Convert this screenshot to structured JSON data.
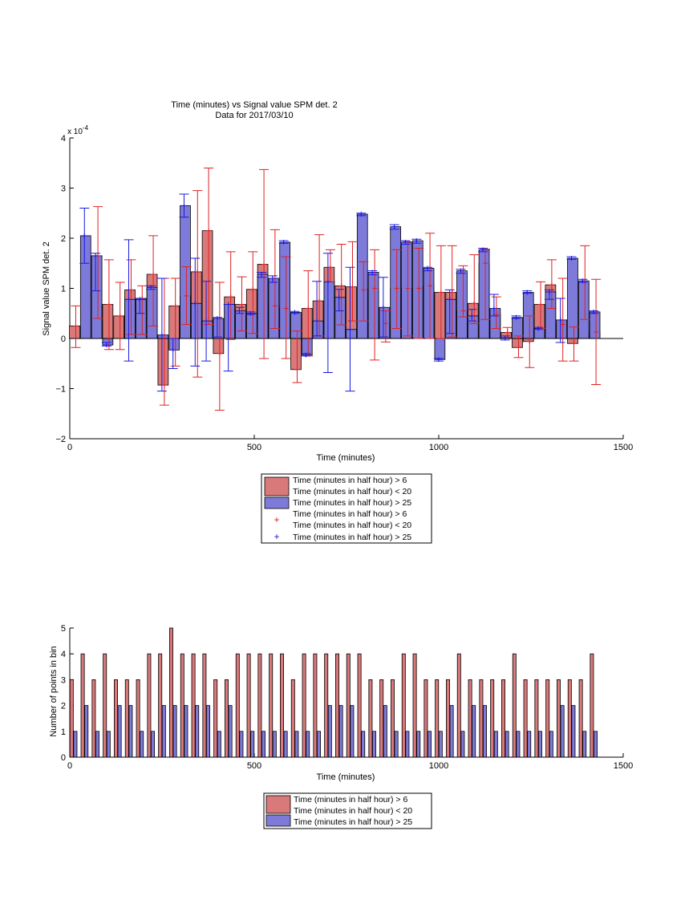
{
  "colors": {
    "red_bar": "#d9797a",
    "blue_bar": "#7d7ad9",
    "red_err": "#e02020",
    "blue_err": "#1a1ae0",
    "axis": "#000000"
  },
  "chart_data": [
    {
      "type": "bar",
      "title": "Time (minutes) vs Signal value SPM det. 2",
      "subtitle": "Data for 2017/03/10",
      "xlabel": "Time (minutes)",
      "ylabel": "Signal value SPM det. 2",
      "y_exponent_label": "x 10",
      "y_exponent": "-4",
      "xlim": [
        0,
        1500
      ],
      "ylim": [
        -2,
        4
      ],
      "xticks": [
        0,
        500,
        1000,
        1500
      ],
      "yticks": [
        -2,
        -1,
        0,
        1,
        2,
        3,
        4
      ],
      "ytick_labels": [
        "−2",
        "−1",
        "0",
        "1",
        "2",
        "3",
        "4"
      ],
      "bar_width_minutes": 28,
      "legend": {
        "placement": "below",
        "entries": [
          {
            "label": "Time (minutes in half hour) > 6",
            "kind": "patch",
            "series": "red"
          },
          {
            "label": "Time (minutes in half hour) < 20",
            "kind": "none"
          },
          {
            "label": "Time (minutes in half hour) > 25",
            "kind": "patch",
            "series": "blue"
          },
          {
            "label": "Time (minutes in half hour) > 6",
            "kind": "none"
          },
          {
            "label": "Time (minutes in half hour) < 20",
            "kind": "plus",
            "series": "red"
          },
          {
            "label": "Time (minutes in half hour) > 25",
            "kind": "plus",
            "series": "blue"
          }
        ]
      },
      "series": [
        {
          "id": "red",
          "x": [
            13,
            73,
            103,
            133,
            163,
            193,
            223,
            253,
            283,
            313,
            343,
            373,
            403,
            433,
            463,
            493,
            523,
            553,
            583,
            613,
            643,
            673,
            703,
            733,
            763,
            793,
            823,
            853,
            883,
            913,
            943,
            973,
            1003,
            1033,
            1063,
            1093,
            1123,
            1153,
            1183,
            1213,
            1243,
            1273,
            1303,
            1333,
            1363,
            1393,
            1423
          ],
          "values": [
            0.25,
            1.65,
            0.68,
            0.45,
            0.97,
            0.8,
            1.28,
            -0.93,
            0.65,
            0.85,
            1.33,
            2.15,
            -0.3,
            0.83,
            0.68,
            0.98,
            1.48,
            0.65,
            0.6,
            -0.62,
            0.6,
            0.75,
            1.42,
            1.05,
            1.03,
            0.97,
            1.0,
            0.3,
            1.0,
            1.0,
            1.0,
            1.05,
            0.92,
            0.92,
            0.55,
            0.7,
            1.5,
            0.48,
            0.12,
            -0.18,
            -0.06,
            0.68,
            1.07,
            0.28,
            -0.1,
            1.12,
            0.13
          ],
          "err_low": [
            -0.18,
            0.4,
            -0.22,
            -0.22,
            0.08,
            0.08,
            0.25,
            -1.33,
            -0.55,
            0.28,
            -0.77,
            0.28,
            -1.43,
            -0.02,
            0.15,
            0.1,
            -0.4,
            0.2,
            -0.4,
            -0.88,
            -0.35,
            0.05,
            1.13,
            0.27,
            0.35,
            0.35,
            -0.43,
            -0.07,
            0.2,
            0.05,
            0.0,
            0.0,
            0.0,
            0.03,
            0.43,
            0.3,
            0.38,
            0.2,
            0.02,
            -0.38,
            -0.58,
            0.2,
            0.6,
            -0.45,
            -0.45,
            0.38,
            -0.92
          ],
          "err_high": [
            0.65,
            2.63,
            1.57,
            1.12,
            1.57,
            1.05,
            2.05,
            1.2,
            1.2,
            1.43,
            2.95,
            3.4,
            1.12,
            1.73,
            1.23,
            1.73,
            3.37,
            2.17,
            1.63,
            0.15,
            1.35,
            2.07,
            1.77,
            1.88,
            1.93,
            1.53,
            1.77,
            0.55,
            1.77,
            1.93,
            1.8,
            2.1,
            1.85,
            1.85,
            1.45,
            1.67,
            1.78,
            0.83,
            0.22,
            0.05,
            0.45,
            1.13,
            1.57,
            1.2,
            0.23,
            1.85,
            1.18
          ]
        },
        {
          "id": "blue",
          "x": [
            43,
            73,
            103,
            163,
            193,
            223,
            253,
            283,
            313,
            343,
            373,
            403,
            433,
            463,
            493,
            523,
            553,
            583,
            613,
            643,
            673,
            703,
            733,
            763,
            793,
            823,
            853,
            883,
            913,
            943,
            973,
            1003,
            1033,
            1063,
            1093,
            1123,
            1153,
            1183,
            1213,
            1243,
            1273,
            1303,
            1333,
            1363,
            1393,
            1423
          ],
          "values": [
            2.05,
            1.65,
            -0.13,
            0.78,
            0.78,
            1.02,
            0.07,
            -0.23,
            2.65,
            0.7,
            0.35,
            0.4,
            0.68,
            0.55,
            0.5,
            1.28,
            1.2,
            1.92,
            0.52,
            -0.33,
            0.35,
            1.13,
            0.82,
            0.18,
            2.48,
            1.32,
            0.62,
            2.23,
            1.92,
            1.95,
            1.4,
            -0.42,
            0.78,
            1.35,
            0.45,
            1.77,
            0.6,
            0.01,
            0.42,
            0.92,
            0.2,
            0.93,
            0.37,
            1.6,
            1.15,
            0.53
          ],
          "err_low": [
            1.5,
            0.95,
            -0.15,
            -0.45,
            0.5,
            0.98,
            -1.05,
            -0.6,
            2.42,
            -0.55,
            -0.45,
            0.03,
            -0.65,
            0.5,
            0.48,
            1.22,
            1.12,
            1.9,
            0.5,
            -0.35,
            0.05,
            -0.68,
            0.55,
            -1.05,
            2.45,
            1.27,
            0.03,
            2.18,
            1.88,
            1.9,
            1.35,
            -0.45,
            0.1,
            1.3,
            0.35,
            1.73,
            0.45,
            -0.03,
            0.4,
            0.9,
            0.18,
            0.78,
            -0.08,
            1.58,
            1.12,
            0.5
          ],
          "err_high": [
            2.6,
            1.7,
            -0.08,
            1.97,
            0.8,
            1.05,
            1.2,
            0.0,
            2.88,
            1.6,
            1.14,
            0.42,
            0.68,
            0.62,
            0.53,
            1.32,
            1.25,
            1.95,
            0.54,
            -0.3,
            1.14,
            1.7,
            0.98,
            1.42,
            2.5,
            1.35,
            1.22,
            2.27,
            1.95,
            1.98,
            1.42,
            -0.4,
            0.97,
            1.38,
            0.58,
            1.8,
            0.88,
            0.05,
            0.45,
            0.95,
            0.22,
            0.97,
            0.8,
            1.63,
            1.18,
            0.55
          ]
        }
      ]
    },
    {
      "type": "bar",
      "title": "",
      "xlabel": "Time (minutes)",
      "ylabel": "Number of points in bin",
      "xlim": [
        0,
        1500
      ],
      "ylim": [
        0,
        5
      ],
      "xticks": [
        0,
        500,
        1000,
        1500
      ],
      "yticks": [
        0,
        1,
        2,
        3,
        4,
        5
      ],
      "bar_width_minutes": 9,
      "legend": {
        "placement": "below",
        "entries": [
          {
            "label": "Time (minutes in half hour) > 6",
            "kind": "patch",
            "series": "red"
          },
          {
            "label": "Time (minutes in half hour) < 20",
            "kind": "none"
          },
          {
            "label": "Time (minutes in half hour) > 25",
            "kind": "patch",
            "series": "blue"
          }
        ]
      },
      "series": [
        {
          "id": "red",
          "x": [
            5,
            35,
            65,
            95,
            125,
            155,
            185,
            215,
            245,
            275,
            305,
            335,
            365,
            395,
            425,
            455,
            485,
            515,
            545,
            575,
            605,
            635,
            665,
            695,
            725,
            755,
            785,
            815,
            845,
            875,
            905,
            935,
            965,
            995,
            1025,
            1055,
            1085,
            1115,
            1145,
            1175,
            1205,
            1235,
            1265,
            1295,
            1325,
            1355,
            1385,
            1415
          ],
          "values": [
            3,
            4,
            3,
            4,
            3,
            3,
            3,
            4,
            4,
            5,
            4,
            4,
            4,
            3,
            3,
            4,
            4,
            4,
            4,
            4,
            3,
            4,
            4,
            4,
            4,
            4,
            4,
            3,
            3,
            3,
            4,
            4,
            3,
            3,
            3,
            4,
            3,
            3,
            3,
            3,
            4,
            3,
            3,
            3,
            3,
            3,
            3,
            4
          ]
        },
        {
          "id": "blue",
          "x": [
            15,
            45,
            75,
            105,
            135,
            165,
            195,
            225,
            255,
            285,
            315,
            345,
            375,
            405,
            435,
            465,
            495,
            525,
            555,
            585,
            615,
            645,
            675,
            705,
            735,
            765,
            795,
            825,
            855,
            885,
            915,
            945,
            975,
            1005,
            1035,
            1065,
            1095,
            1125,
            1155,
            1185,
            1215,
            1245,
            1275,
            1305,
            1335,
            1365,
            1395,
            1425
          ],
          "values": [
            1,
            2,
            1,
            1,
            2,
            2,
            1,
            1,
            2,
            2,
            2,
            2,
            2,
            1,
            2,
            1,
            1,
            1,
            1,
            1,
            1,
            1,
            1,
            2,
            2,
            2,
            1,
            1,
            2,
            1,
            1,
            1,
            1,
            1,
            2,
            1,
            2,
            2,
            1,
            1,
            1,
            1,
            1,
            1,
            2,
            2,
            1,
            1
          ]
        }
      ]
    }
  ]
}
